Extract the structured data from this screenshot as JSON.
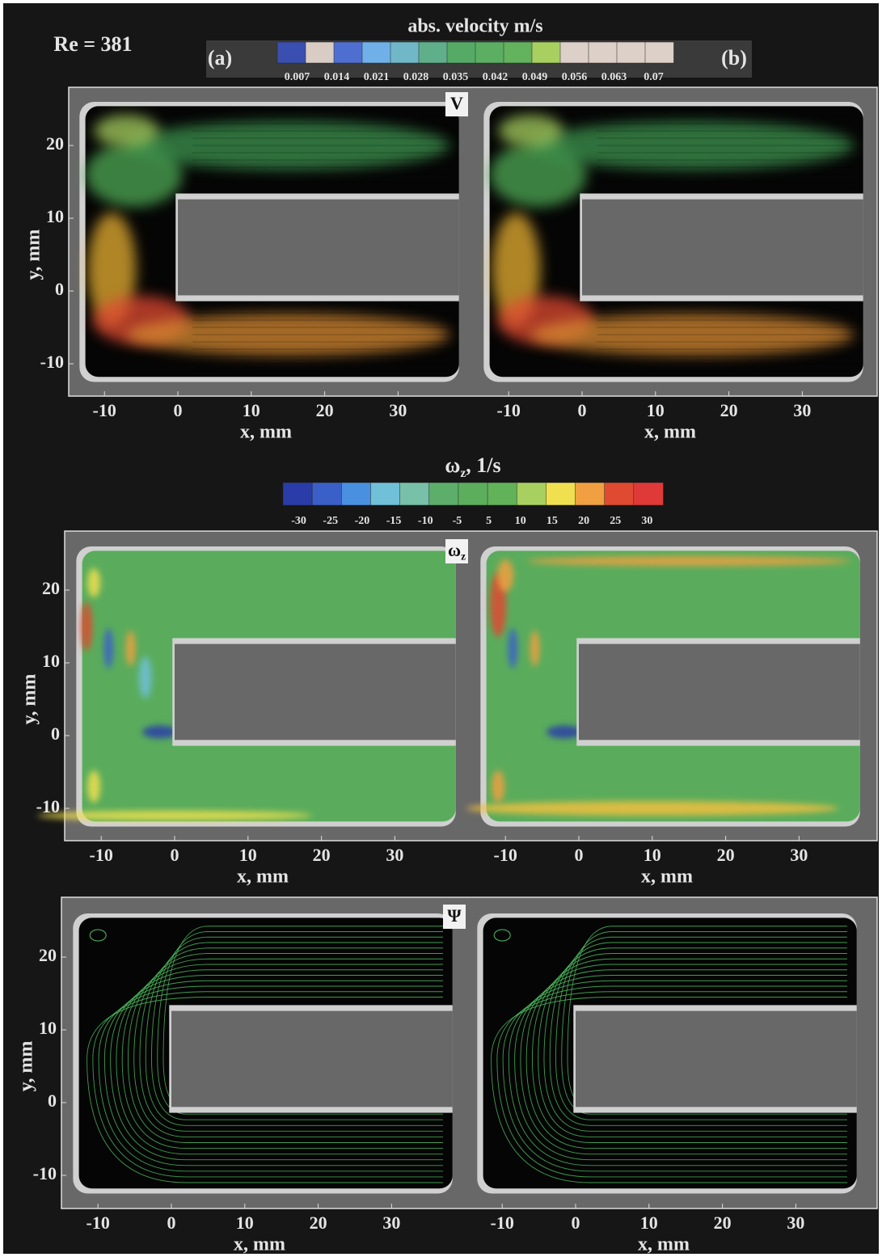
{
  "header": {
    "re_label": "Re = 381",
    "label_a": "(a)",
    "label_b": "(b)"
  },
  "colorbars": [
    {
      "title": "abs. velocity m/s",
      "colors": [
        "#3a4fb0",
        "#d8ccc4",
        "#4f6fd0",
        "#6fb0e8",
        "#70b8c8",
        "#5fb08a",
        "#55aa66",
        "#5cae62",
        "#62b25e",
        "#a8d060",
        "#dcd0c8",
        "#dcd0c8",
        "#dcd0c8",
        "#dcd0c8"
      ],
      "labels": [
        "0.007",
        "0.014",
        "0.021",
        "0.028",
        "0.035",
        "0.042",
        "0.049",
        "0.056",
        "0.063",
        "0.07"
      ]
    },
    {
      "title": {
        "symbol": "ω",
        "sub": "z",
        "rest": ", 1/s"
      },
      "colors": [
        "#2a3ca8",
        "#3a60c8",
        "#4a90e0",
        "#70c0d8",
        "#78c0a8",
        "#5cae6a",
        "#5cae5c",
        "#62b25a",
        "#a8d060",
        "#f0e050",
        "#f0a040",
        "#e04a30",
        "#e03a38"
      ],
      "labels": [
        "-30",
        "-25",
        "-20",
        "-15",
        "-10",
        "-5",
        "5",
        "10",
        "15",
        "20",
        "25",
        "30"
      ]
    }
  ],
  "rows": [
    {
      "panel_label": {
        "symbol": "V"
      },
      "x_label": "x, mm",
      "y_label": "y, mm",
      "x_ticks": [
        -10,
        0,
        10,
        20,
        30
      ],
      "y_ticks": [
        -10,
        0,
        10,
        20
      ]
    },
    {
      "panel_label": {
        "symbol": "ω",
        "sub": "z"
      },
      "x_label": "x, mm",
      "y_label": "y, mm",
      "x_ticks": [
        -10,
        0,
        10,
        20,
        30
      ],
      "y_ticks": [
        -10,
        0,
        10,
        20
      ]
    },
    {
      "panel_label": {
        "symbol": "Ψ"
      },
      "x_label": "x, mm",
      "y_label": "y, mm",
      "x_ticks": [
        -10,
        0,
        10,
        20,
        30
      ],
      "y_ticks": [
        -10,
        0,
        10,
        20
      ]
    }
  ]
}
